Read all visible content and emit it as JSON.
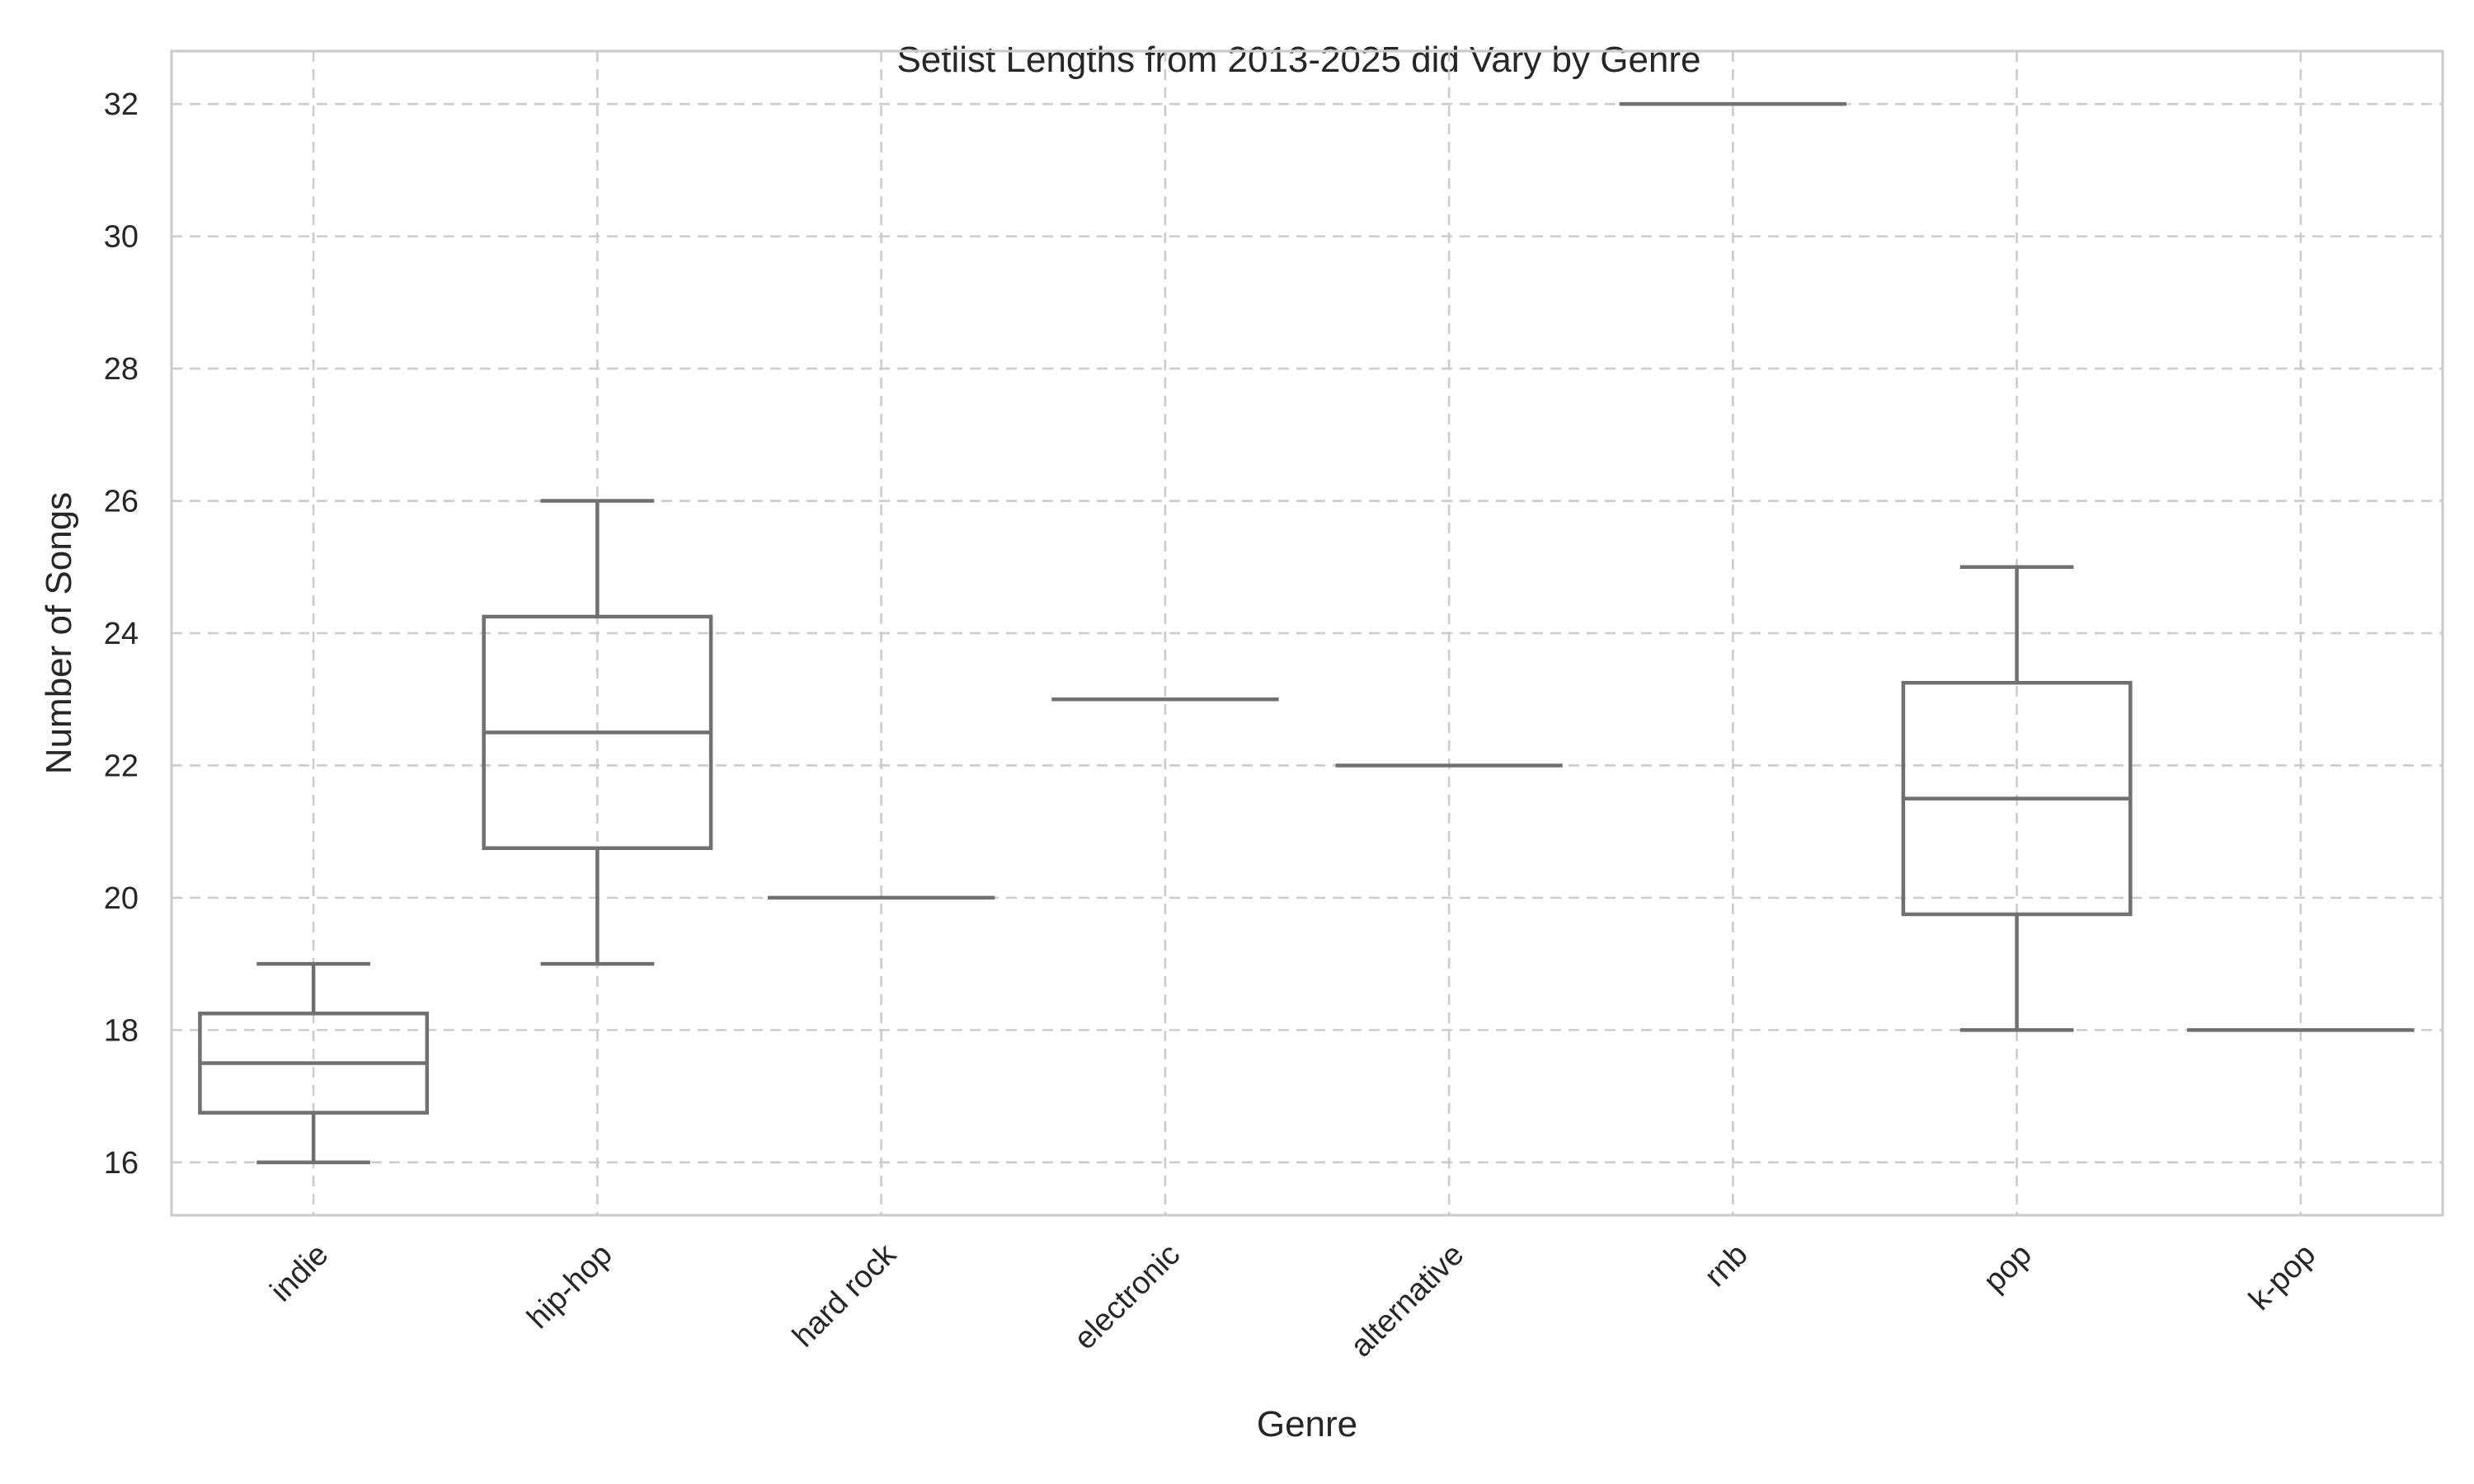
{
  "chart_data": {
    "type": "box",
    "title": "Setlist Lengths from 2013-2025 did Vary by Genre",
    "xlabel": "Genre",
    "ylabel": "Number of Songs",
    "ylim": [
      15.2,
      32.8
    ],
    "yticks": [
      16,
      18,
      20,
      22,
      24,
      26,
      28,
      30,
      32
    ],
    "grid": true,
    "categories": [
      "indie",
      "hip-hop",
      "hard rock",
      "electronic",
      "alternative",
      "rnb",
      "pop",
      "k-pop"
    ],
    "boxes": [
      {
        "category": "indie",
        "whisker_low": 16,
        "q1": 16.75,
        "median": 17.5,
        "q3": 18.25,
        "whisker_high": 19,
        "color": "#a1c9f4"
      },
      {
        "category": "hip-hop",
        "whisker_low": 19,
        "q1": 20.75,
        "median": 22.5,
        "q3": 24.25,
        "whisker_high": 26,
        "color": "#ffb482"
      },
      {
        "category": "hard rock",
        "whisker_low": 20,
        "q1": 20,
        "median": 20,
        "q3": 20,
        "whisker_high": 20,
        "color": "#8de5a1"
      },
      {
        "category": "electronic",
        "whisker_low": 23,
        "q1": 23,
        "median": 23,
        "q3": 23,
        "whisker_high": 23,
        "color": "#ff9f9b"
      },
      {
        "category": "alternative",
        "whisker_low": 22,
        "q1": 22,
        "median": 22,
        "q3": 22,
        "whisker_high": 22,
        "color": "#d0bbff"
      },
      {
        "category": "rnb",
        "whisker_low": 32,
        "q1": 32,
        "median": 32,
        "q3": 32,
        "whisker_high": 32,
        "color": "#debb9b"
      },
      {
        "category": "pop",
        "whisker_low": 18,
        "q1": 19.75,
        "median": 21.5,
        "q3": 23.25,
        "whisker_high": 25,
        "color": "#fab0e4"
      },
      {
        "category": "k-pop",
        "whisker_low": 18,
        "q1": 18,
        "median": 18,
        "q3": 18,
        "whisker_high": 18,
        "color": "#cfcfcf"
      }
    ]
  }
}
